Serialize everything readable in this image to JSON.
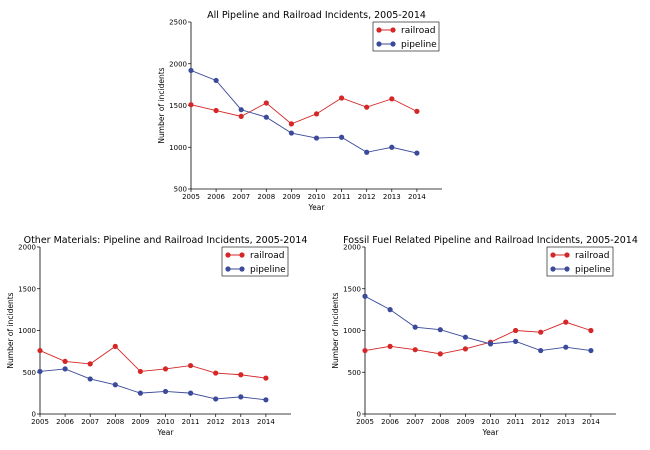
{
  "chart_data": [
    {
      "type": "line",
      "title": "All Pipeline and Railroad Incidents, 2005-2014",
      "xlabel": "Year",
      "ylabel": "Number of incidents",
      "x": [
        2005,
        2006,
        2007,
        2008,
        2009,
        2010,
        2011,
        2012,
        2013,
        2014
      ],
      "xlim": [
        2005,
        2015
      ],
      "ylim": [
        500,
        2500
      ],
      "yticks": [
        500,
        1000,
        1500,
        2000,
        2500
      ],
      "legend_position": "top-right",
      "grid": false,
      "series": [
        {
          "name": "railroad",
          "color": "#d62728",
          "values": [
            1510,
            1440,
            1370,
            1530,
            1280,
            1400,
            1590,
            1480,
            1580,
            1430
          ]
        },
        {
          "name": "pipeline",
          "color": "#3b4a9a",
          "values": [
            1920,
            1800,
            1450,
            1360,
            1170,
            1110,
            1120,
            940,
            1000,
            930
          ]
        }
      ]
    },
    {
      "type": "line",
      "title": "Other Materials: Pipeline and Railroad Incidents, 2005-2014",
      "xlabel": "Year",
      "ylabel": "Number of incidents",
      "x": [
        2005,
        2006,
        2007,
        2008,
        2009,
        2010,
        2011,
        2012,
        2013,
        2014
      ],
      "xlim": [
        2005,
        2015
      ],
      "ylim": [
        0,
        2000
      ],
      "yticks": [
        0,
        500,
        1000,
        1500,
        2000
      ],
      "legend_position": "top-right",
      "grid": false,
      "series": [
        {
          "name": "railroad",
          "color": "#d62728",
          "values": [
            760,
            630,
            600,
            810,
            510,
            540,
            580,
            490,
            470,
            430
          ]
        },
        {
          "name": "pipeline",
          "color": "#3b4a9a",
          "values": [
            510,
            540,
            420,
            350,
            250,
            270,
            250,
            180,
            205,
            170
          ]
        }
      ]
    },
    {
      "type": "line",
      "title": "Fossil Fuel Related Pipeline and Railroad Incidents, 2005-2014",
      "xlabel": "Year",
      "ylabel": "Number of incidents",
      "x": [
        2005,
        2006,
        2007,
        2008,
        2009,
        2010,
        2011,
        2012,
        2013,
        2014
      ],
      "xlim": [
        2005,
        2015
      ],
      "ylim": [
        0,
        2000
      ],
      "yticks": [
        0,
        500,
        1000,
        1500,
        2000
      ],
      "legend_position": "top-right",
      "grid": false,
      "series": [
        {
          "name": "railroad",
          "color": "#d62728",
          "values": [
            760,
            810,
            770,
            720,
            780,
            860,
            1000,
            980,
            1100,
            1000
          ]
        },
        {
          "name": "pipeline",
          "color": "#3b4a9a",
          "values": [
            1410,
            1250,
            1040,
            1010,
            920,
            840,
            870,
            760,
            800,
            760
          ]
        }
      ]
    }
  ]
}
